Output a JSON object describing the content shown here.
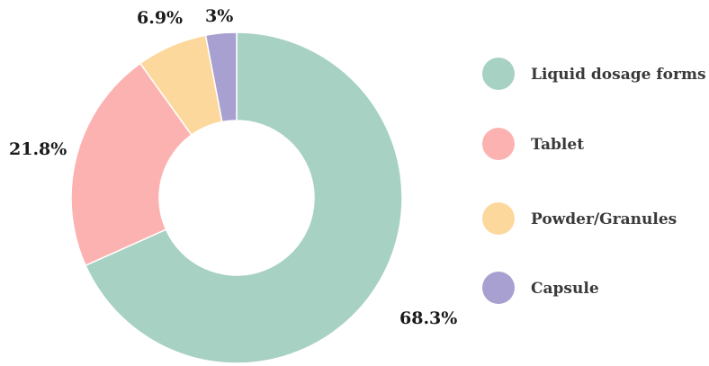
{
  "chart_data": {
    "type": "pie",
    "variant": "donut",
    "title": "",
    "legend_position": "right",
    "categories": [
      "Liquid dosage forms",
      "Tablet",
      "Powder/Granules",
      "Capsule"
    ],
    "values": [
      68.3,
      21.8,
      6.9,
      3
    ],
    "labels": [
      "68.3%",
      "21.8%",
      "6.9%",
      "3%"
    ],
    "colors": [
      "#a7d1c3",
      "#fdb2b2",
      "#fdd89d",
      "#a7a0d1"
    ]
  }
}
